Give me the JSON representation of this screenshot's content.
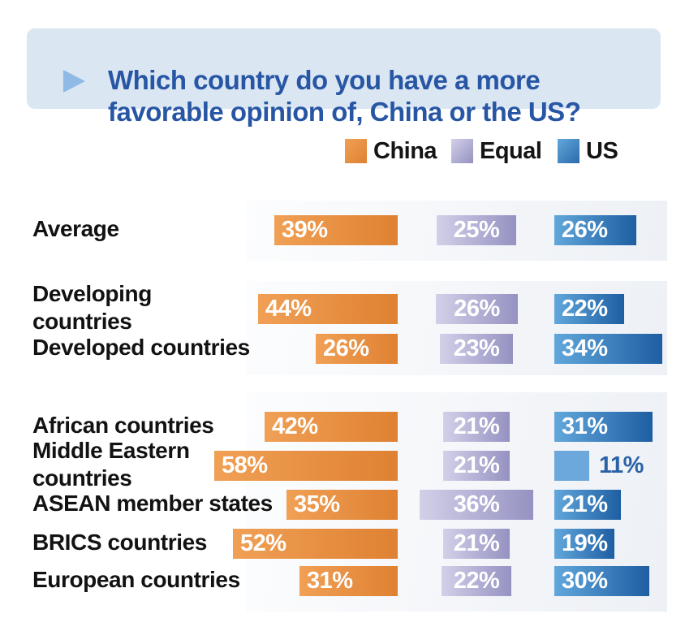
{
  "header": {
    "title_line1": "Which country do you have a more",
    "title_line2": "favorable opinion of, China or the US?"
  },
  "legend": {
    "items": [
      {
        "label": "China"
      },
      {
        "label": "Equal"
      },
      {
        "label": "US"
      }
    ]
  },
  "chart_data": {
    "type": "bar",
    "title": "Which country do you have a more favorable opinion of, China or the US?",
    "unit": "%",
    "value_suffix": "%",
    "legend_position": "top-right",
    "orientation": "horizontal",
    "categories": [
      "Average",
      "Developing countries",
      "Developed countries",
      "African countries",
      "Middle Eastern countries",
      "ASEAN member states",
      "BRICS countries",
      "European countries"
    ],
    "category_label_lines": [
      [
        "Average"
      ],
      [
        "Developing",
        "countries"
      ],
      [
        "Developed countries"
      ],
      [
        "African countries"
      ],
      [
        "Middle Eastern",
        "countries"
      ],
      [
        "ASEAN member states"
      ],
      [
        "BRICS countries"
      ],
      [
        "European countries"
      ]
    ],
    "series": [
      {
        "name": "China",
        "values": [
          39,
          44,
          26,
          42,
          58,
          35,
          52,
          31
        ]
      },
      {
        "name": "Equal",
        "values": [
          25,
          26,
          23,
          21,
          21,
          36,
          21,
          22
        ]
      },
      {
        "name": "US",
        "values": [
          26,
          22,
          34,
          31,
          11,
          21,
          19,
          30
        ]
      }
    ],
    "groups": [
      {
        "rows": [
          0
        ]
      },
      {
        "rows": [
          1,
          2
        ]
      },
      {
        "rows": [
          3,
          4,
          5,
          6,
          7
        ]
      }
    ]
  },
  "colors": {
    "header_background": "#DBE6F3",
    "header_title": "#2756A4",
    "header_triangle": "#8FBAE5",
    "china_gradient_start": "#F0A055",
    "china_gradient_end": "#DF8132",
    "equal_gradient_start": "#D2D0E8",
    "equal_gradient_end": "#9592C2",
    "us_gradient_start": "#61A7DB",
    "us_gradient_end": "#1E5EA2",
    "us_small_bar": "#6CA8DB",
    "us_outside_label": "#2A62A7",
    "value_text": "#FFFFFF",
    "category_text": "#121212",
    "legend_text": "#141414",
    "band_gradient_start": "#FCFDFE",
    "band_gradient_end": "#EDF0F5"
  }
}
